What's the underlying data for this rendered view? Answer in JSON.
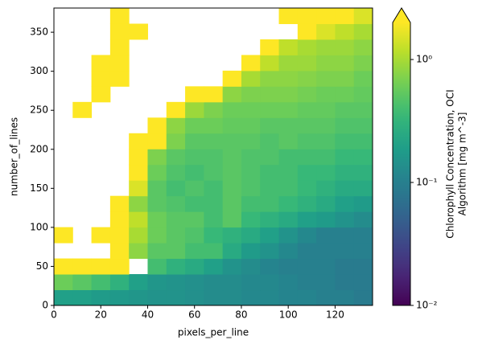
{
  "chart_data": {
    "type": "heatmap",
    "xlabel": "pixels_per_line",
    "ylabel": "number_of_lines",
    "colorbar_label": [
      "Chlorophyll Concentration, OCI",
      "Algorithm [mg m^-3]"
    ],
    "colormap": "viridis",
    "color_scale": "log",
    "colorbar_extend": "max",
    "xlim": [
      0,
      136
    ],
    "ylim": [
      0,
      381
    ],
    "xticks": [
      0,
      20,
      40,
      60,
      80,
      100,
      120
    ],
    "yticks": [
      0,
      50,
      100,
      150,
      200,
      250,
      300,
      350
    ],
    "clim": [
      0.01,
      2
    ],
    "cticks": [
      {
        "value": 0.01,
        "label": "10⁻²"
      },
      {
        "value": 0.1,
        "label": "10⁻¹"
      },
      {
        "value": 1,
        "label": "10⁰"
      }
    ],
    "z": [
      [
        0.2,
        0.2,
        0.18,
        0.17,
        0.16,
        0.15,
        0.15,
        0.14,
        0.13,
        0.13,
        0.12,
        0.12,
        0.11,
        0.11,
        0.1,
        0.1,
        0.09
      ],
      [
        0.6,
        0.5,
        0.4,
        0.3,
        0.2,
        0.16,
        0.15,
        0.14,
        0.13,
        0.13,
        0.12,
        0.12,
        0.11,
        0.1,
        0.1,
        0.09,
        0.09
      ],
      [
        3,
        3,
        3,
        3,
        null,
        0.4,
        0.3,
        0.25,
        0.2,
        0.15,
        0.13,
        0.11,
        0.1,
        0.1,
        0.1,
        0.09,
        0.09
      ],
      [
        null,
        null,
        null,
        3,
        0.8,
        0.5,
        0.5,
        0.4,
        0.4,
        0.25,
        0.18,
        0.15,
        0.12,
        0.1,
        0.1,
        0.1,
        0.1
      ],
      [
        3,
        null,
        3,
        3,
        1,
        0.6,
        0.5,
        0.45,
        0.35,
        0.3,
        0.25,
        0.2,
        0.15,
        0.12,
        0.1,
        0.1,
        0.1
      ],
      [
        null,
        null,
        null,
        3,
        1.2,
        0.6,
        0.5,
        0.5,
        0.4,
        0.5,
        0.35,
        0.3,
        0.25,
        0.2,
        0.18,
        0.15,
        0.13
      ],
      [
        null,
        null,
        null,
        3,
        0.8,
        0.5,
        0.45,
        0.4,
        0.4,
        0.5,
        0.4,
        0.4,
        0.35,
        0.3,
        0.25,
        0.2,
        0.18
      ],
      [
        null,
        null,
        null,
        null,
        1.5,
        0.5,
        0.4,
        0.45,
        0.4,
        0.5,
        0.45,
        0.4,
        0.4,
        0.35,
        0.3,
        0.25,
        0.25
      ],
      [
        null,
        null,
        null,
        null,
        3,
        0.6,
        0.45,
        0.4,
        0.45,
        0.5,
        0.45,
        0.4,
        0.4,
        0.35,
        0.35,
        0.3,
        0.3
      ],
      [
        null,
        null,
        null,
        null,
        3,
        0.7,
        0.5,
        0.45,
        0.45,
        0.5,
        0.45,
        0.45,
        0.4,
        0.4,
        0.4,
        0.35,
        0.35
      ],
      [
        null,
        null,
        null,
        null,
        3,
        3,
        0.7,
        0.5,
        0.5,
        0.5,
        0.5,
        0.45,
        0.5,
        0.45,
        0.45,
        0.4,
        0.4
      ],
      [
        null,
        null,
        null,
        null,
        null,
        3,
        0.8,
        0.6,
        0.6,
        0.55,
        0.55,
        0.5,
        0.5,
        0.5,
        0.5,
        0.45,
        0.45
      ],
      [
        null,
        3,
        null,
        null,
        null,
        null,
        3,
        0.9,
        0.7,
        0.6,
        0.6,
        0.6,
        0.6,
        0.55,
        0.55,
        0.5,
        0.5
      ],
      [
        null,
        null,
        3,
        null,
        null,
        null,
        null,
        3,
        3,
        0.8,
        0.7,
        0.7,
        0.7,
        0.65,
        0.6,
        0.6,
        0.55
      ],
      [
        null,
        null,
        3,
        3,
        null,
        null,
        null,
        null,
        null,
        3,
        1,
        0.8,
        0.8,
        0.75,
        0.7,
        0.7,
        0.6
      ],
      [
        null,
        null,
        3,
        3,
        null,
        null,
        null,
        null,
        null,
        null,
        3,
        1.2,
        0.9,
        0.9,
        0.8,
        0.8,
        0.7
      ],
      [
        null,
        null,
        null,
        3,
        null,
        null,
        null,
        null,
        null,
        null,
        null,
        3,
        1.2,
        1,
        0.9,
        0.9,
        0.8
      ],
      [
        null,
        null,
        null,
        3,
        3,
        null,
        null,
        null,
        null,
        null,
        null,
        null,
        null,
        3,
        1.5,
        1.2,
        1
      ],
      [
        null,
        null,
        null,
        3,
        null,
        null,
        null,
        null,
        null,
        null,
        null,
        null,
        3,
        3,
        3,
        2,
        1.5
      ]
    ]
  }
}
